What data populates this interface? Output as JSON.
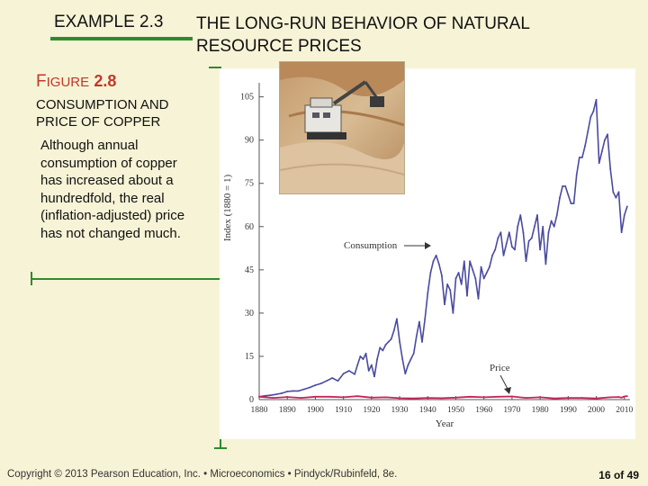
{
  "header": {
    "example": "EXAMPLE 2.3",
    "title": "THE LONG-RUN BEHAVIOR OF NATURAL RESOURCE PRICES"
  },
  "figure": {
    "label_first": "F",
    "label_small": "IGURE",
    "label_num": "2.8",
    "title": "CONSUMPTION AND PRICE OF COPPER",
    "caption": "Although annual consumption of copper has increased about a hundredfold, the real (inflation-adjusted) price has not changed much."
  },
  "footer": {
    "copyright": "Copyright © 2013 Pearson Education, Inc. • Microeconomics • Pindyck/Rubinfeld, 8e.",
    "page": "16 of 49"
  },
  "colors": {
    "accent_green": "#2f8a2f",
    "figure_red": "#c0392b",
    "consumption_line": "#4a4aa0",
    "price_line": "#c8235a",
    "slide_bg": "#f7f3d6"
  },
  "chart_data": {
    "type": "line",
    "title": "",
    "xlabel": "Year",
    "ylabel": "Index (1880 = 1)",
    "xlim": [
      1880,
      2012
    ],
    "ylim": [
      0,
      108
    ],
    "x_ticks": [
      1880,
      1890,
      1900,
      1910,
      1920,
      1930,
      1940,
      1950,
      1960,
      1970,
      1980,
      1990,
      2000,
      2010
    ],
    "y_ticks": [
      0,
      15,
      30,
      45,
      60,
      75,
      90,
      105
    ],
    "y_tick_labels": [
      "0",
      "15",
      "30",
      "45",
      "60",
      "75",
      "90",
      "105"
    ],
    "annotations": [
      {
        "text": "Consumption",
        "target_series": "Consumption"
      },
      {
        "text": "Price",
        "target_series": "Price"
      }
    ],
    "series": [
      {
        "name": "Consumption",
        "color": "#4a4aa0",
        "x": [
          1880,
          1882,
          1884,
          1886,
          1888,
          1890,
          1892,
          1894,
          1896,
          1898,
          1900,
          1902,
          1904,
          1906,
          1908,
          1910,
          1912,
          1914,
          1915,
          1916,
          1917,
          1918,
          1919,
          1920,
          1921,
          1922,
          1923,
          1924,
          1925,
          1926,
          1927,
          1928,
          1929,
          1930,
          1931,
          1932,
          1933,
          1934,
          1935,
          1936,
          1937,
          1938,
          1939,
          1940,
          1941,
          1942,
          1943,
          1944,
          1945,
          1946,
          1947,
          1948,
          1949,
          1950,
          1951,
          1952,
          1953,
          1954,
          1955,
          1956,
          1957,
          1958,
          1959,
          1960,
          1961,
          1962,
          1963,
          1964,
          1965,
          1966,
          1967,
          1968,
          1969,
          1970,
          1971,
          1972,
          1973,
          1974,
          1975,
          1976,
          1977,
          1978,
          1979,
          1980,
          1981,
          1982,
          1983,
          1984,
          1985,
          1986,
          1987,
          1988,
          1989,
          1990,
          1991,
          1992,
          1993,
          1994,
          1995,
          1996,
          1997,
          1998,
          1999,
          2000,
          2001,
          2002,
          2003,
          2004,
          2005,
          2006,
          2007,
          2008,
          2009,
          2010,
          2011
        ],
        "values": [
          1,
          1.3,
          1.5,
          1.8,
          2.2,
          2.8,
          3,
          3,
          3.6,
          4.2,
          5,
          5.6,
          6.5,
          7.5,
          6.5,
          9,
          10,
          8.8,
          12,
          15,
          14,
          16,
          10,
          12,
          8,
          14,
          18,
          17,
          19,
          20,
          21,
          24,
          28,
          20,
          14,
          9,
          12,
          14,
          16,
          22,
          27,
          20,
          28,
          37,
          44,
          48,
          50,
          47,
          43,
          33,
          40,
          38,
          30,
          42,
          44,
          40,
          48,
          36,
          48,
          45,
          42,
          35,
          46,
          42,
          44,
          46,
          50,
          52,
          56,
          58,
          50,
          54,
          58,
          53,
          52,
          60,
          64,
          58,
          48,
          55,
          56,
          60,
          64,
          52,
          60,
          47,
          58,
          62,
          60,
          64,
          70,
          74,
          74,
          71,
          68,
          68,
          78,
          84,
          84,
          88,
          93,
          98,
          100,
          104,
          82,
          86,
          90,
          92,
          80,
          72,
          70,
          72,
          58,
          64,
          67
        ]
      },
      {
        "name": "Price",
        "color": "#c8235a",
        "x": [
          1880,
          1885,
          1890,
          1895,
          1900,
          1905,
          1910,
          1915,
          1920,
          1925,
          1930,
          1935,
          1940,
          1945,
          1950,
          1955,
          1960,
          1965,
          1970,
          1975,
          1980,
          1985,
          1990,
          1995,
          2000,
          2005,
          2008,
          2009,
          2010,
          2011
        ],
        "values": [
          1.0,
          0.6,
          0.9,
          0.6,
          1.0,
          1.0,
          0.8,
          1.2,
          0.7,
          0.8,
          0.5,
          0.4,
          0.6,
          0.5,
          0.7,
          1.0,
          0.8,
          1.0,
          1.1,
          0.6,
          0.8,
          0.4,
          0.6,
          0.6,
          0.4,
          0.8,
          0.9,
          0.7,
          1.1,
          1.2
        ]
      }
    ]
  }
}
